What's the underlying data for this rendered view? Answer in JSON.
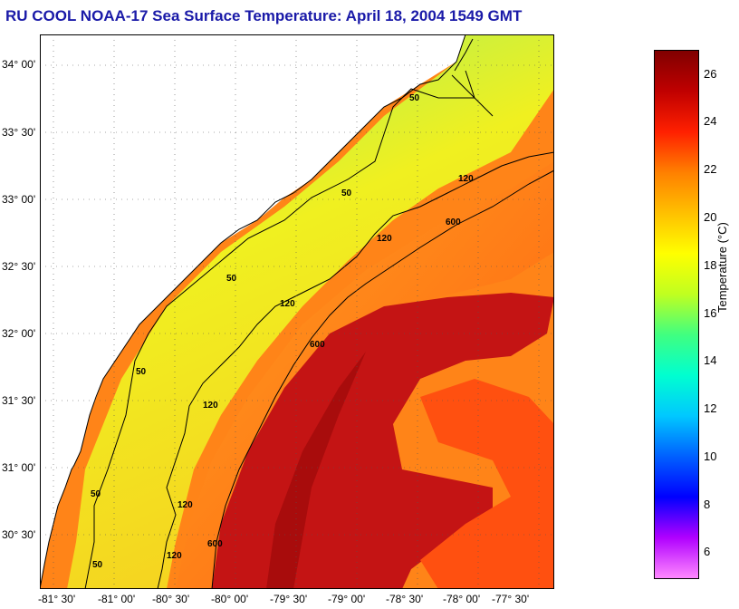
{
  "title": "RU COOL  NOAA-17  Sea Surface Temperature:  April 18, 2004 1549 GMT",
  "map": {
    "lat_labels": [
      "34° 00'",
      "33° 30'",
      "33° 00'",
      "32° 30'",
      "32° 00'",
      "31° 30'",
      "31° 00'",
      "30° 30'"
    ],
    "lon_labels": [
      "-81° 30'",
      "-81° 00'",
      "-80° 30'",
      "-80° 00'",
      "-79° 30'",
      "-79° 00'",
      "-78° 30'",
      "-78° 00'",
      "-77° 30'"
    ],
    "contour_labels": [
      "50",
      "50",
      "50",
      "50",
      "50",
      "50",
      "120",
      "120",
      "120",
      "120",
      "120",
      "120",
      "600",
      "600",
      "600"
    ],
    "colors": {
      "land": "#ffffff",
      "shelf_cool": "#78e878",
      "shelf": "#f0f020",
      "slope": "#ff9010",
      "gulf_stream": "#c81010",
      "contour": "#000000"
    }
  },
  "colorbar": {
    "ticks": [
      "26",
      "24",
      "22",
      "20",
      "18",
      "16",
      "14",
      "12",
      "10",
      "8",
      "6"
    ],
    "label": "Temperature (°C)",
    "min": 5,
    "max": 27,
    "gradient": [
      "#ff88ff",
      "#b000ff",
      "#0000ff",
      "#0060ff",
      "#00c8ff",
      "#00ffd0",
      "#40ff80",
      "#c0ff20",
      "#ffff00",
      "#ffc000",
      "#ff8000",
      "#ff2000",
      "#c00000",
      "#800000"
    ]
  }
}
